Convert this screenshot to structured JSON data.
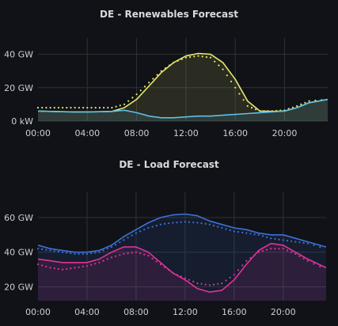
{
  "chart_data": [
    {
      "type": "line",
      "title": "DE - Renewables Forecast",
      "x_ticks": [
        "00:00",
        "04:00",
        "08:00",
        "12:00",
        "16:00",
        "20:00"
      ],
      "y_ticks": [
        "0 kW",
        "20 GW",
        "40 GW"
      ],
      "ylim": [
        0,
        45
      ],
      "grid": true,
      "series": [
        {
          "color": "#e5e66a",
          "style": "line-fill",
          "x": [
            0,
            1,
            2,
            3,
            4,
            5,
            6,
            7,
            8,
            9,
            10,
            11,
            12,
            13,
            14,
            15,
            16,
            17,
            18,
            19,
            20,
            21,
            22,
            23.5
          ],
          "values": [
            6,
            5.8,
            5.6,
            5.5,
            5.5,
            5.6,
            5.8,
            8,
            13,
            21,
            29,
            35,
            39,
            40.5,
            40,
            35,
            25,
            12,
            6,
            5.8,
            6,
            8,
            11,
            13
          ]
        },
        {
          "color": "#e5e66a",
          "style": "dots",
          "x": [
            0,
            1,
            2,
            3,
            4,
            5,
            6,
            7,
            8,
            9,
            10,
            11,
            12,
            13,
            14,
            15,
            16,
            17,
            18,
            19,
            20,
            21,
            22,
            23.5
          ],
          "values": [
            8,
            8,
            8,
            8,
            8,
            8,
            8,
            10,
            16,
            23,
            30,
            35,
            38,
            39,
            38,
            31,
            20,
            9,
            6,
            6,
            6.5,
            9,
            12,
            13
          ]
        },
        {
          "color": "#5bbfe8",
          "style": "line-fill",
          "x": [
            0,
            1,
            2,
            3,
            4,
            5,
            6,
            7,
            8,
            9,
            10,
            11,
            12,
            13,
            14,
            15,
            16,
            17,
            18,
            19,
            20,
            21,
            22,
            23.5
          ],
          "values": [
            6,
            5.8,
            5.6,
            5.5,
            5.5,
            5.6,
            5.8,
            6.5,
            5,
            3,
            2,
            2,
            2.5,
            3,
            3,
            3.5,
            4,
            4.5,
            5,
            5.5,
            6,
            8,
            11,
            13
          ]
        }
      ]
    },
    {
      "type": "line",
      "title": "DE - Load Forecast",
      "x_ticks": [
        "00:00",
        "04:00",
        "08:00",
        "12:00",
        "16:00",
        "20:00"
      ],
      "y_ticks": [
        "20 GW",
        "40 GW",
        "60 GW"
      ],
      "ylim": [
        12,
        70
      ],
      "grid": true,
      "series": [
        {
          "color": "#3d71d9",
          "style": "line-fill",
          "x": [
            0,
            1,
            2,
            3,
            4,
            5,
            6,
            7,
            8,
            9,
            10,
            11,
            12,
            13,
            14,
            15,
            16,
            17,
            18,
            19,
            20,
            21,
            22,
            23.5
          ],
          "values": [
            44,
            42,
            41,
            40,
            40,
            41,
            44,
            49,
            53,
            57,
            60,
            61.5,
            62,
            61,
            58,
            56,
            54,
            53,
            51,
            50,
            50,
            48,
            46,
            43
          ]
        },
        {
          "color": "#3d71d9",
          "style": "dots",
          "x": [
            0,
            1,
            2,
            3,
            4,
            5,
            6,
            7,
            8,
            9,
            10,
            11,
            12,
            13,
            14,
            15,
            16,
            17,
            18,
            19,
            20,
            21,
            22,
            23.5
          ],
          "values": [
            42,
            41,
            40,
            39,
            39,
            40,
            43,
            47,
            51,
            54,
            56,
            57,
            57.5,
            57,
            56,
            54,
            52,
            51,
            50,
            48,
            47,
            46,
            45,
            42
          ]
        },
        {
          "color": "#e0329a",
          "style": "line-fill",
          "x": [
            0,
            1,
            2,
            3,
            4,
            5,
            6,
            7,
            8,
            9,
            10,
            11,
            12,
            13,
            14,
            15,
            16,
            17,
            18,
            19,
            20,
            21,
            22,
            23.5
          ],
          "values": [
            36,
            35,
            34,
            34,
            34,
            36,
            40,
            43,
            43,
            40,
            34,
            28,
            24,
            19,
            17,
            18,
            24,
            33,
            41,
            45,
            44,
            40,
            36,
            31
          ]
        },
        {
          "color": "#e0329a",
          "style": "dots",
          "x": [
            0,
            1,
            2,
            3,
            4,
            5,
            6,
            7,
            8,
            9,
            10,
            11,
            12,
            13,
            14,
            15,
            16,
            17,
            18,
            19,
            20,
            21,
            22,
            23.5
          ],
          "values": [
            33,
            31,
            30,
            31,
            32,
            34,
            37,
            39,
            40,
            38,
            33,
            28,
            25,
            22,
            21,
            22,
            27,
            35,
            40,
            42,
            42,
            39,
            35,
            30
          ]
        }
      ]
    }
  ]
}
